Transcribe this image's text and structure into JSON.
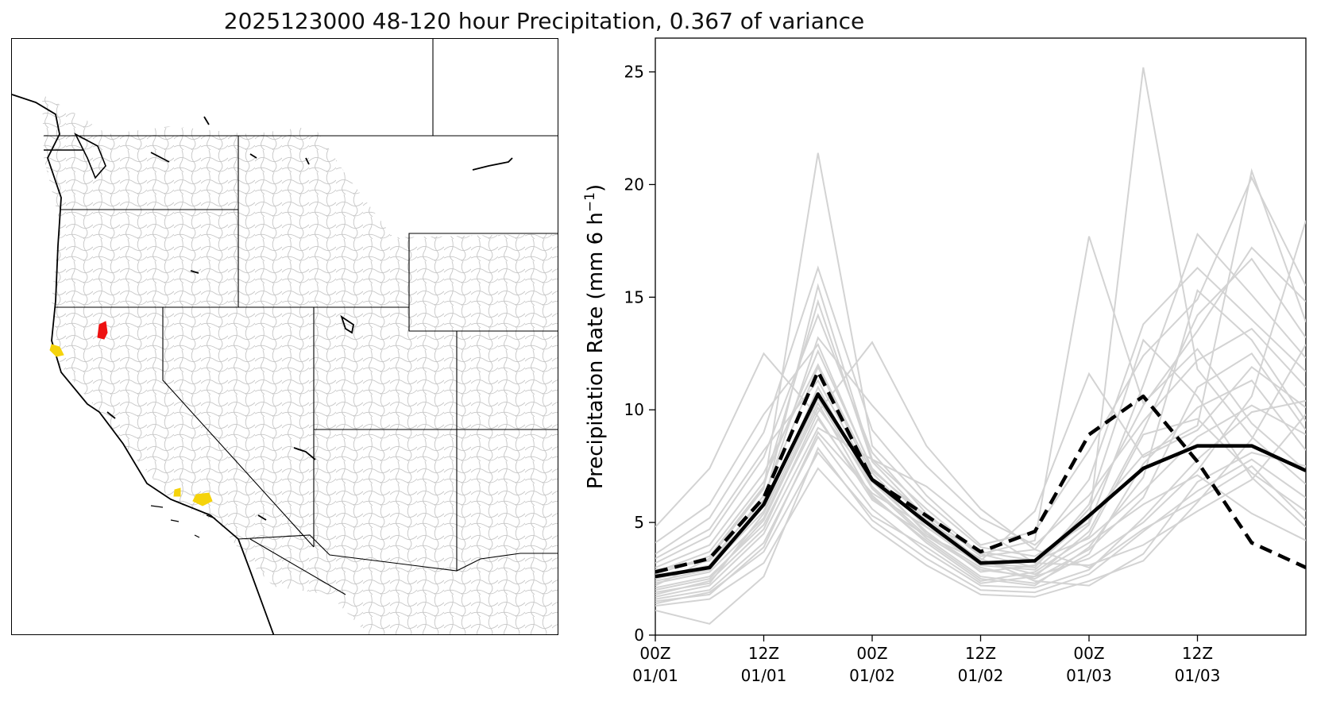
{
  "figure": {
    "title": "2025123000 48-120 hour Precipitation, 0.367 of variance"
  },
  "colors": {
    "member": "#d3d3d3",
    "mean": "#000000",
    "highlight_red": "#ee1111",
    "highlight_yellow": "#f5d30b",
    "basin": "#c6c6c6"
  },
  "map": {
    "description_icon": "west-us-basin-map",
    "highlighted_basins": [
      {
        "color": "red",
        "region": "northern-california-interior"
      },
      {
        "color": "yellow",
        "region": "northern-california-coast"
      },
      {
        "color": "yellow",
        "region": "southern-california-coast"
      }
    ]
  },
  "chart_data": {
    "type": "line",
    "ylabel": "Precipitation Rate (mm 6 h",
    "ylabel_exp": "−1",
    "ylabel_close": ")",
    "ylim": [
      0,
      26.5
    ],
    "yticks": [
      0,
      5,
      10,
      15,
      20,
      25
    ],
    "xlim": [
      0,
      18
    ],
    "xticks": [
      {
        "x": 0,
        "top": "00Z",
        "bottom": "01/01"
      },
      {
        "x": 3,
        "top": "12Z",
        "bottom": "01/01"
      },
      {
        "x": 6,
        "top": "00Z",
        "bottom": "01/02"
      },
      {
        "x": 9,
        "top": "12Z",
        "bottom": "01/02"
      },
      {
        "x": 12,
        "top": "00Z",
        "bottom": "01/03"
      },
      {
        "x": 15,
        "top": "12Z",
        "bottom": "01/03"
      }
    ],
    "x": [
      0,
      1.5,
      3,
      4.5,
      6,
      7.5,
      9,
      10.5,
      12,
      13.5,
      15,
      16.5,
      18
    ],
    "series_solid": {
      "name": "mean",
      "values": [
        2.6,
        3.0,
        5.8,
        10.7,
        6.9,
        5.0,
        3.2,
        3.3,
        5.3,
        7.4,
        8.4,
        8.4,
        7.3
      ]
    },
    "series_dashed": {
      "name": "obs",
      "values": [
        2.8,
        3.4,
        6.1,
        11.7,
        6.9,
        5.3,
        3.7,
        4.6,
        8.9,
        10.6,
        7.7,
        4.1,
        3.0
      ]
    },
    "members": [
      [
        2.1,
        2.6,
        4.9,
        9.6,
        6.2,
        4.1,
        2.4,
        2.8,
        4.4,
        8.9,
        9.6,
        7.2,
        5.5
      ],
      [
        2.5,
        3.1,
        6.2,
        11.9,
        7.0,
        4.5,
        3.0,
        2.5,
        3.8,
        6.1,
        11.0,
        12.5,
        9.1
      ],
      [
        1.6,
        2.0,
        4.1,
        8.8,
        5.6,
        3.7,
        2.2,
        2.1,
        2.9,
        5.2,
        7.8,
        9.9,
        10.4
      ],
      [
        3.2,
        4.4,
        7.9,
        14.2,
        8.1,
        5.4,
        3.5,
        3.8,
        6.9,
        13.8,
        16.3,
        14.0,
        11.7
      ],
      [
        1.3,
        1.6,
        3.2,
        7.4,
        4.8,
        3.1,
        1.8,
        1.7,
        2.4,
        3.3,
        5.9,
        8.7,
        12.9
      ],
      [
        2.8,
        3.7,
        6.8,
        12.6,
        7.4,
        5.1,
        3.2,
        3.0,
        5.6,
        10.2,
        13.5,
        17.2,
        14.8
      ],
      [
        1.9,
        2.3,
        5.4,
        10.5,
        6.5,
        4.3,
        2.6,
        2.3,
        3.6,
        7.6,
        10.1,
        11.3,
        8.2
      ],
      [
        4.8,
        7.4,
        12.5,
        9.7,
        6.0,
        4.4,
        3.3,
        2.7,
        4.1,
        5.8,
        7.1,
        5.4,
        4.2
      ],
      [
        2.4,
        2.9,
        5.8,
        15.5,
        7.8,
        5.6,
        3.6,
        4.2,
        17.7,
        10.3,
        12.7,
        9.4,
        7.3
      ],
      [
        1.1,
        0.5,
        2.6,
        8.3,
        5.1,
        3.4,
        2.0,
        1.9,
        2.7,
        4.6,
        6.4,
        7.8,
        6.1
      ],
      [
        3.6,
        5.2,
        9.0,
        16.3,
        9.1,
        6.2,
        4.0,
        4.6,
        8.2,
        12.4,
        14.9,
        20.3,
        15.5
      ],
      [
        2.2,
        3.4,
        6.5,
        21.4,
        8.4,
        5.9,
        3.9,
        3.5,
        5.0,
        25.2,
        11.8,
        8.8,
        6.7
      ],
      [
        1.7,
        2.2,
        4.5,
        9.2,
        7.8,
        6.6,
        4.7,
        3.2,
        3.1,
        4.0,
        5.5,
        6.9,
        9.8
      ],
      [
        2.9,
        3.3,
        6.0,
        13.2,
        10.2,
        7.5,
        5.2,
        4.0,
        6.2,
        9.5,
        12.2,
        13.6,
        11.0
      ],
      [
        1.4,
        1.9,
        3.7,
        8.1,
        5.3,
        3.9,
        2.3,
        2.6,
        3.4,
        5.0,
        7.3,
        10.6,
        18.4
      ],
      [
        3.0,
        4.0,
        7.2,
        12.0,
        7.2,
        4.8,
        3.1,
        2.9,
        4.9,
        11.1,
        17.8,
        15.1,
        12.3
      ],
      [
        2.0,
        2.5,
        5.1,
        10.1,
        6.8,
        4.6,
        2.8,
        3.1,
        5.2,
        8.0,
        9.3,
        20.6,
        13.9
      ],
      [
        1.5,
        1.8,
        3.9,
        9.0,
        6.3,
        4.8,
        3.4,
        2.4,
        2.2,
        3.6,
        6.8,
        8.1,
        7.5
      ],
      [
        2.7,
        3.5,
        6.6,
        14.8,
        7.7,
        5.2,
        3.3,
        5.5,
        11.6,
        7.9,
        9.1,
        11.9,
        10.1
      ],
      [
        3.4,
        4.7,
        8.2,
        11.3,
        6.9,
        5.0,
        3.7,
        3.3,
        4.3,
        6.4,
        8.8,
        10.2,
        8.9
      ],
      [
        1.8,
        2.4,
        4.7,
        9.9,
        13.0,
        8.4,
        5.6,
        3.8,
        3.0,
        4.7,
        6.0,
        7.5,
        5.1
      ],
      [
        2.6,
        3.0,
        5.5,
        11.0,
        6.6,
        4.4,
        2.9,
        2.6,
        4.6,
        9.1,
        14.2,
        16.7,
        13.2
      ],
      [
        4.1,
        5.8,
        9.8,
        12.9,
        7.3,
        5.3,
        3.6,
        3.0,
        5.8,
        13.1,
        10.6,
        7.0,
        4.8
      ],
      [
        2.3,
        2.8,
        5.2,
        10.3,
        6.1,
        4.2,
        2.5,
        2.2,
        3.9,
        7.0,
        15.3,
        13.1,
        9.5
      ]
    ]
  }
}
